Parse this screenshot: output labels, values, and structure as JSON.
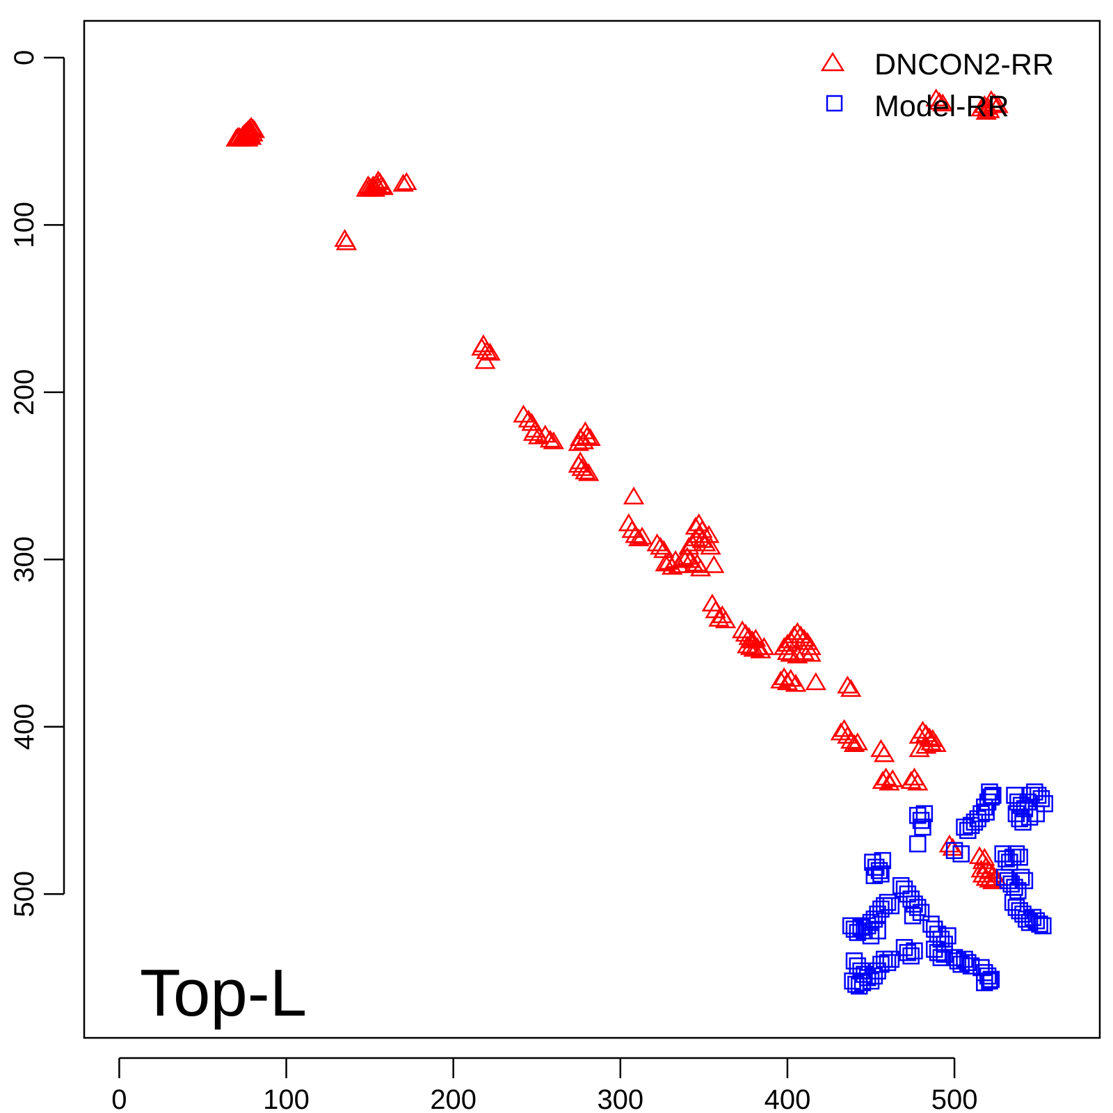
{
  "chart_data": {
    "type": "scatter",
    "title": "",
    "xlabel": "",
    "ylabel": "",
    "xlim": [
      -21,
      587
    ],
    "ylim": [
      -22,
      586
    ],
    "y_reversed": true,
    "x_ticks": [
      0,
      100,
      200,
      300,
      400,
      500
    ],
    "y_ticks": [
      0,
      100,
      200,
      300,
      400,
      500
    ],
    "tick_labels_x": [
      "0",
      "100",
      "200",
      "300",
      "400",
      "500"
    ],
    "tick_labels_y": [
      "0",
      "100",
      "200",
      "300",
      "400",
      "500"
    ],
    "grid": false,
    "legend_position": "top-right",
    "panel_label": "Top-L",
    "series": [
      {
        "name": "DNCON2-RR",
        "marker": "open-triangle",
        "color": "#ff0000",
        "points": [
          [
            70,
            48
          ],
          [
            72,
            47
          ],
          [
            73,
            48
          ],
          [
            74,
            46
          ],
          [
            75,
            45
          ],
          [
            76,
            44
          ],
          [
            77,
            43
          ],
          [
            78,
            42
          ],
          [
            79,
            41
          ],
          [
            80,
            42
          ],
          [
            81,
            43
          ],
          [
            74,
            48
          ],
          [
            76,
            47
          ],
          [
            78,
            46
          ],
          [
            80,
            45
          ],
          [
            77,
            48
          ],
          [
            79,
            47
          ],
          [
            75,
            46
          ],
          [
            71,
            47
          ],
          [
            78,
            44
          ],
          [
            148,
            78
          ],
          [
            150,
            77
          ],
          [
            152,
            76
          ],
          [
            154,
            75
          ],
          [
            155,
            73
          ],
          [
            156,
            74
          ],
          [
            157,
            76
          ],
          [
            158,
            77
          ],
          [
            151,
            78
          ],
          [
            153,
            78
          ],
          [
            149,
            76
          ],
          [
            155,
            77
          ],
          [
            172,
            74
          ],
          [
            170,
            75
          ],
          [
            135,
            108
          ],
          [
            136,
            110
          ],
          [
            217,
            173
          ],
          [
            218,
            171
          ],
          [
            220,
            175
          ],
          [
            222,
            176
          ],
          [
            219,
            181
          ],
          [
            242,
            213
          ],
          [
            245,
            216
          ],
          [
            247,
            218
          ],
          [
            249,
            222
          ],
          [
            251,
            226
          ],
          [
            255,
            225
          ],
          [
            258,
            228
          ],
          [
            260,
            229
          ],
          [
            248,
            224
          ],
          [
            275,
            230
          ],
          [
            276,
            227
          ],
          [
            278,
            229
          ],
          [
            280,
            226
          ],
          [
            282,
            227
          ],
          [
            279,
            223
          ],
          [
            275,
            243
          ],
          [
            277,
            245
          ],
          [
            279,
            247
          ],
          [
            281,
            248
          ],
          [
            276,
            241
          ],
          [
            308,
            262
          ],
          [
            305,
            278
          ],
          [
            307,
            282
          ],
          [
            309,
            285
          ],
          [
            311,
            287
          ],
          [
            313,
            286
          ],
          [
            322,
            290
          ],
          [
            324,
            292
          ],
          [
            326,
            294
          ],
          [
            327,
            302
          ],
          [
            329,
            301
          ],
          [
            331,
            304
          ],
          [
            333,
            300
          ],
          [
            335,
            303
          ],
          [
            338,
            299
          ],
          [
            340,
            298
          ],
          [
            342,
            300
          ],
          [
            344,
            303
          ],
          [
            346,
            302
          ],
          [
            348,
            305
          ],
          [
            341,
            292
          ],
          [
            343,
            290
          ],
          [
            345,
            287
          ],
          [
            347,
            285
          ],
          [
            349,
            288
          ],
          [
            351,
            290
          ],
          [
            345,
            280
          ],
          [
            347,
            278
          ],
          [
            349,
            282
          ],
          [
            353,
            285
          ],
          [
            354,
            292
          ],
          [
            356,
            303
          ],
          [
            355,
            326
          ],
          [
            357,
            330
          ],
          [
            359,
            335
          ],
          [
            363,
            336
          ],
          [
            361,
            333
          ],
          [
            373,
            342
          ],
          [
            375,
            344
          ],
          [
            377,
            346
          ],
          [
            379,
            348
          ],
          [
            381,
            347
          ],
          [
            376,
            351
          ],
          [
            378,
            352
          ],
          [
            380,
            353
          ],
          [
            382,
            352
          ],
          [
            384,
            354
          ],
          [
            386,
            352
          ],
          [
            398,
            352
          ],
          [
            400,
            350
          ],
          [
            402,
            348
          ],
          [
            404,
            345
          ],
          [
            406,
            343
          ],
          [
            408,
            345
          ],
          [
            410,
            347
          ],
          [
            412,
            349
          ],
          [
            414,
            352
          ],
          [
            400,
            355
          ],
          [
            402,
            356
          ],
          [
            406,
            357
          ],
          [
            410,
            355
          ],
          [
            414,
            356
          ],
          [
            396,
            372
          ],
          [
            398,
            370
          ],
          [
            400,
            373
          ],
          [
            402,
            371
          ],
          [
            405,
            374
          ],
          [
            417,
            373
          ],
          [
            436,
            375
          ],
          [
            438,
            377
          ],
          [
            432,
            403
          ],
          [
            434,
            401
          ],
          [
            436,
            405
          ],
          [
            438,
            408
          ],
          [
            440,
            410
          ],
          [
            442,
            409
          ],
          [
            456,
            413
          ],
          [
            458,
            416
          ],
          [
            457,
            432
          ],
          [
            459,
            430
          ],
          [
            461,
            433
          ],
          [
            463,
            431
          ],
          [
            474,
            432
          ],
          [
            476,
            430
          ],
          [
            478,
            433
          ],
          [
            479,
            405
          ],
          [
            481,
            402
          ],
          [
            483,
            404
          ],
          [
            485,
            406
          ],
          [
            487,
            407
          ],
          [
            489,
            410
          ],
          [
            479,
            413
          ],
          [
            483,
            411
          ],
          [
            486,
            409
          ],
          [
            489,
            24
          ],
          [
            491,
            26
          ],
          [
            493,
            27
          ],
          [
            516,
            30
          ],
          [
            518,
            28
          ],
          [
            520,
            29
          ],
          [
            522,
            25
          ],
          [
            524,
            27
          ],
          [
            526,
            28
          ],
          [
            519,
            32
          ],
          [
            521,
            31
          ],
          [
            497,
            470
          ],
          [
            499,
            472
          ],
          [
            515,
            477
          ],
          [
            517,
            480
          ],
          [
            519,
            483
          ],
          [
            521,
            486
          ],
          [
            523,
            488
          ],
          [
            525,
            490
          ],
          [
            517,
            488
          ],
          [
            519,
            490
          ],
          [
            521,
            491
          ],
          [
            523,
            492
          ],
          [
            516,
            485
          ],
          [
            518,
            478
          ]
        ]
      },
      {
        "name": "Model-RR",
        "marker": "open-square",
        "color": "#0000ff",
        "points": [
          [
            478,
            453
          ],
          [
            480,
            456
          ],
          [
            482,
            452
          ],
          [
            481,
            460
          ],
          [
            506,
            460
          ],
          [
            508,
            462
          ],
          [
            510,
            459
          ],
          [
            512,
            457
          ],
          [
            514,
            455
          ],
          [
            516,
            452
          ],
          [
            518,
            448
          ],
          [
            520,
            445
          ],
          [
            522,
            442
          ],
          [
            521,
            439
          ],
          [
            523,
            441
          ],
          [
            519,
            451
          ],
          [
            536,
            441
          ],
          [
            538,
            445
          ],
          [
            540,
            447
          ],
          [
            542,
            449
          ],
          [
            544,
            445
          ],
          [
            546,
            441
          ],
          [
            548,
            439
          ],
          [
            550,
            441
          ],
          [
            552,
            443
          ],
          [
            554,
            446
          ],
          [
            537,
            452
          ],
          [
            539,
            455
          ],
          [
            541,
            457
          ],
          [
            545,
            454
          ],
          [
            549,
            452
          ],
          [
            451,
            481
          ],
          [
            453,
            484
          ],
          [
            455,
            486
          ],
          [
            457,
            480
          ],
          [
            452,
            489
          ],
          [
            456,
            488
          ],
          [
            478,
            470
          ],
          [
            500,
            474
          ],
          [
            504,
            476
          ],
          [
            529,
            476
          ],
          [
            531,
            479
          ],
          [
            533,
            481
          ],
          [
            535,
            478
          ],
          [
            537,
            476
          ],
          [
            539,
            478
          ],
          [
            530,
            490
          ],
          [
            532,
            492
          ],
          [
            534,
            494
          ],
          [
            536,
            496
          ],
          [
            538,
            498
          ],
          [
            540,
            490
          ],
          [
            542,
            492
          ],
          [
            535,
            505
          ],
          [
            537,
            508
          ],
          [
            539,
            510
          ],
          [
            541,
            512
          ],
          [
            543,
            515
          ],
          [
            545,
            517
          ],
          [
            547,
            514
          ],
          [
            549,
            516
          ],
          [
            551,
            518
          ],
          [
            553,
            519
          ],
          [
            468,
            495
          ],
          [
            470,
            497
          ],
          [
            472,
            500
          ],
          [
            474,
            503
          ],
          [
            476,
            506
          ],
          [
            478,
            508
          ],
          [
            480,
            511
          ],
          [
            475,
            513
          ],
          [
            486,
            518
          ],
          [
            488,
            521
          ],
          [
            490,
            524
          ],
          [
            492,
            527
          ],
          [
            494,
            530
          ],
          [
            496,
            525
          ],
          [
            488,
            533
          ],
          [
            490,
            535
          ],
          [
            492,
            538
          ],
          [
            494,
            536
          ],
          [
            470,
            532
          ],
          [
            472,
            535
          ],
          [
            474,
            537
          ],
          [
            476,
            534
          ],
          [
            500,
            538
          ],
          [
            502,
            540
          ],
          [
            504,
            542
          ],
          [
            506,
            539
          ],
          [
            508,
            541
          ],
          [
            510,
            543
          ],
          [
            516,
            544
          ],
          [
            518,
            547
          ],
          [
            520,
            549
          ],
          [
            522,
            551
          ],
          [
            518,
            553
          ],
          [
            521,
            552
          ],
          [
            438,
            519
          ],
          [
            440,
            521
          ],
          [
            442,
            523
          ],
          [
            444,
            520
          ],
          [
            446,
            522
          ],
          [
            448,
            519
          ],
          [
            450,
            517
          ],
          [
            452,
            515
          ],
          [
            454,
            512
          ],
          [
            456,
            509
          ],
          [
            458,
            507
          ],
          [
            460,
            505
          ],
          [
            462,
            507
          ],
          [
            450,
            525
          ],
          [
            454,
            522
          ],
          [
            440,
            540
          ],
          [
            442,
            543
          ],
          [
            444,
            546
          ],
          [
            446,
            548
          ],
          [
            448,
            550
          ],
          [
            450,
            552
          ],
          [
            452,
            549
          ],
          [
            454,
            546
          ],
          [
            456,
            542
          ],
          [
            458,
            539
          ],
          [
            460,
            541
          ],
          [
            462,
            539
          ],
          [
            439,
            552
          ],
          [
            441,
            554
          ],
          [
            443,
            555
          ],
          [
            445,
            553
          ]
        ]
      }
    ]
  }
}
